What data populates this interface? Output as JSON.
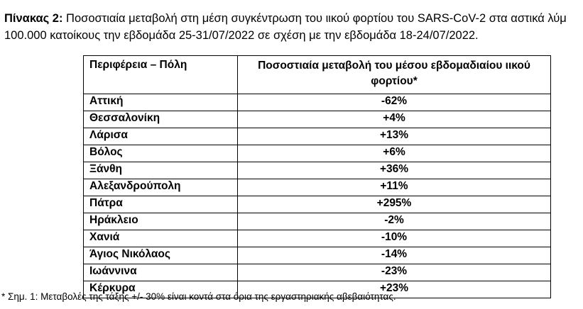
{
  "caption": {
    "label": "Πίνακας 2:",
    "line1": " Ποσοστιαία μεταβολή στη μέση συγκέντρωση του ιικού φορτίου του SARS-CoV-2 στα αστικά λύμ",
    "line2": "100.000 κατοίκους την εβδομάδα 25-31/07/2022 σε σχέση με την εβδομάδα 18-24/07/2022."
  },
  "table": {
    "headers": {
      "region": "Περιφέρεια – Πόλη",
      "change": "Ποσοστιαία μεταβολή του μέσου εβδομαδιαίου ιικού φορτίου*"
    },
    "rows": [
      {
        "region": "Αττική",
        "change": "-62%"
      },
      {
        "region": "Θεσσαλονίκη",
        "change": "+4%"
      },
      {
        "region": "Λάρισα",
        "change": "+13%"
      },
      {
        "region": "Βόλος",
        "change": "+6%"
      },
      {
        "region": "Ξάνθη",
        "change": "+36%"
      },
      {
        "region": "Αλεξανδρούπολη",
        "change": "+11%"
      },
      {
        "region": "Πάτρα",
        "change": "+295%"
      },
      {
        "region": "Ηράκλειο",
        "change": "-2%"
      },
      {
        "region": "Χανιά",
        "change": "-10%"
      },
      {
        "region": "Άγιος Νικόλαος",
        "change": "-14%"
      },
      {
        "region": "Ιωάννινα",
        "change": "-23%"
      },
      {
        "region": "Κέρκυρα",
        "change": "+23%"
      }
    ]
  },
  "footnote": "* Σημ. 1: Μεταβολές της τάξης +/- 30% είναι κοντά στα όρια της εργαστηριακής αβεβαιότητας."
}
